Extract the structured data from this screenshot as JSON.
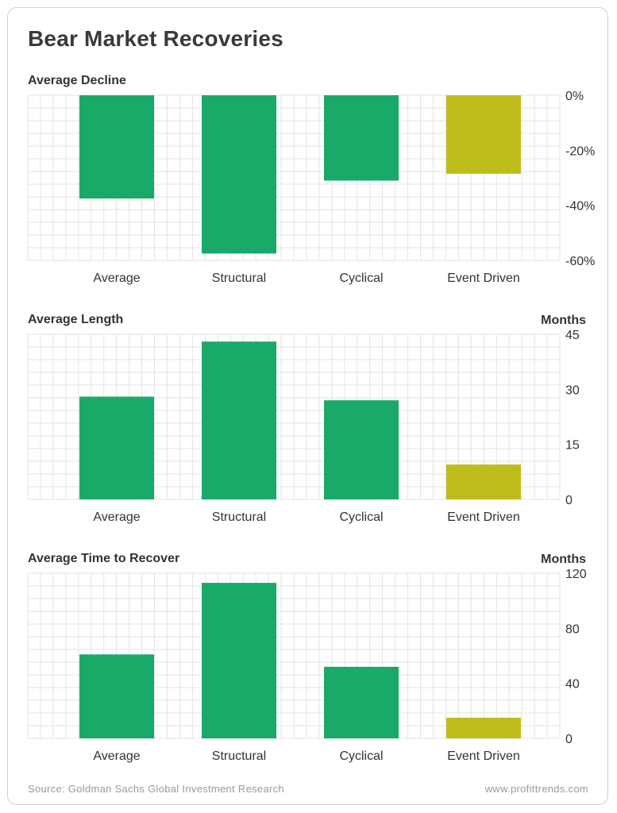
{
  "title": "Bear Market Recoveries",
  "colors": {
    "green": "#19a968",
    "olive": "#bebd1c",
    "grid": "#e3e3e3",
    "text": "#333333"
  },
  "chart_data": [
    {
      "type": "bar",
      "title": "Average Decline",
      "unit_label": "",
      "categories": [
        "Average",
        "Structural",
        "Cyclical",
        "Event Driven"
      ],
      "values": [
        -37.5,
        -57.5,
        -31,
        -28.5
      ],
      "bar_colors": [
        "green",
        "green",
        "green",
        "olive"
      ],
      "ylim": [
        -60,
        0
      ],
      "yticks": [
        0,
        -20,
        -40,
        -60
      ],
      "ytick_labels": [
        "0%",
        "-20%",
        "-40%",
        "-60%"
      ],
      "grid": true
    },
    {
      "type": "bar",
      "title": "Average Length",
      "unit_label": "Months",
      "categories": [
        "Average",
        "Structural",
        "Cyclical",
        "Event Driven"
      ],
      "values": [
        28,
        43,
        27,
        9.5
      ],
      "bar_colors": [
        "green",
        "green",
        "green",
        "olive"
      ],
      "ylim": [
        0,
        45
      ],
      "yticks": [
        45,
        30,
        15,
        0
      ],
      "ytick_labels": [
        "45",
        "30",
        "15",
        "0"
      ],
      "grid": true
    },
    {
      "type": "bar",
      "title": "Average Time to Recover",
      "unit_label": "Months",
      "categories": [
        "Average",
        "Structural",
        "Cyclical",
        "Event Driven"
      ],
      "values": [
        61,
        113,
        52,
        15
      ],
      "bar_colors": [
        "green",
        "green",
        "green",
        "olive"
      ],
      "ylim": [
        0,
        120
      ],
      "yticks": [
        120,
        80,
        40,
        0
      ],
      "ytick_labels": [
        "120",
        "80",
        "40",
        "0"
      ],
      "grid": true
    }
  ],
  "footer": {
    "source": "Source: Goldman Sachs Global Investment Research",
    "site": "www.profittrends.com"
  }
}
